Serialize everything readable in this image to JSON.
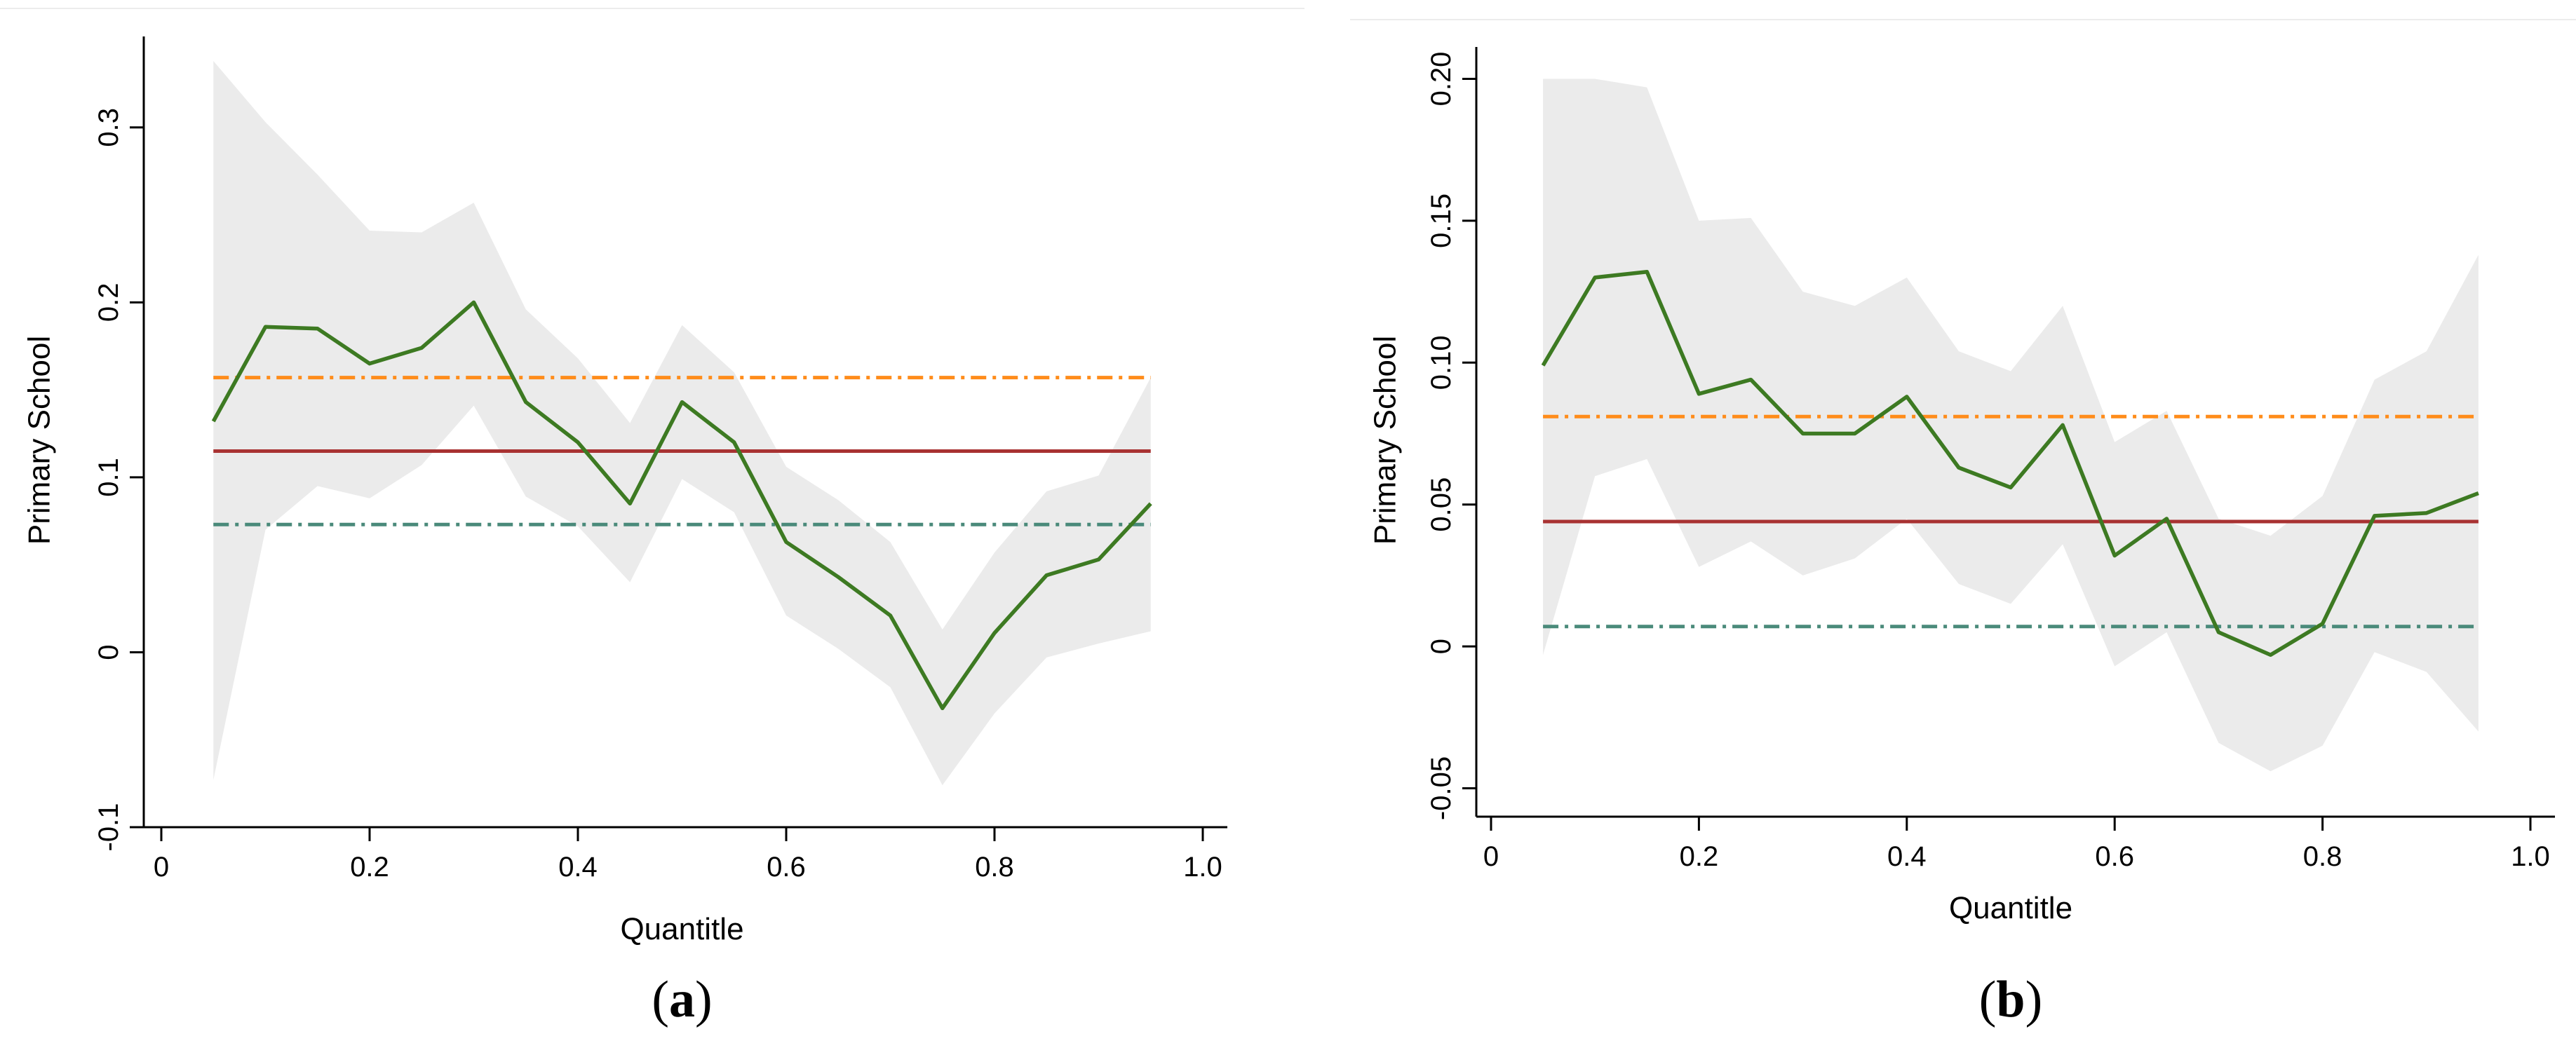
{
  "chart_data": [
    {
      "type": "line",
      "panel": "a",
      "panel_label": {
        "open": "(",
        "letter": "a",
        "close": ")"
      },
      "xlabel": "Quantitle",
      "ylabel": "Primary School",
      "xlim": [
        0,
        1.0
      ],
      "ylim": [
        -0.1,
        0.35
      ],
      "xticks": [
        0,
        0.2,
        0.4,
        0.6,
        0.8,
        1.0
      ],
      "xtick_labels": [
        "0",
        "0.2",
        "0.4",
        "0.6",
        "0.8",
        "1.0"
      ],
      "yticks": [
        -0.1,
        0,
        0.1,
        0.2,
        0.3
      ],
      "ytick_labels": [
        "-0.1",
        "0",
        "0.1",
        "0.2",
        "0.3"
      ],
      "x": [
        0.05,
        0.1,
        0.15,
        0.2,
        0.25,
        0.3,
        0.35,
        0.4,
        0.45,
        0.5,
        0.55,
        0.6,
        0.65,
        0.7,
        0.75,
        0.8,
        0.85,
        0.9,
        0.95
      ],
      "series": [
        {
          "name": "Quantile estimate",
          "style": "solid",
          "color": "#3d7a22",
          "values": [
            0.132,
            0.186,
            0.185,
            0.165,
            0.174,
            0.2,
            0.143,
            0.12,
            0.085,
            0.143,
            0.12,
            0.063,
            0.043,
            0.021,
            -0.032,
            0.011,
            0.044,
            0.053,
            0.085
          ]
        },
        {
          "name": "CI upper",
          "role": "band-upper",
          "values": [
            0.338,
            0.303,
            0.273,
            0.241,
            0.24,
            0.257,
            0.196,
            0.168,
            0.131,
            0.187,
            0.16,
            0.106,
            0.087,
            0.063,
            0.013,
            0.057,
            0.092,
            0.101,
            0.157
          ]
        },
        {
          "name": "CI lower",
          "role": "band-lower",
          "values": [
            -0.073,
            0.07,
            0.095,
            0.088,
            0.107,
            0.141,
            0.089,
            0.072,
            0.04,
            0.099,
            0.08,
            0.021,
            0.002,
            -0.02,
            -0.076,
            -0.035,
            -0.003,
            0.005,
            0.012
          ]
        },
        {
          "name": "OLS estimate",
          "style": "solid",
          "color": "#a83232",
          "constant": 0.115
        },
        {
          "name": "OLS CI upper",
          "style": "dashdot",
          "color": "#ff8c1a",
          "constant": 0.157
        },
        {
          "name": "OLS CI lower",
          "style": "dashdot",
          "color": "#4a8a7a",
          "constant": 0.073
        }
      ]
    },
    {
      "type": "line",
      "panel": "b",
      "panel_label": {
        "open": "(",
        "letter": "b",
        "close": ")"
      },
      "xlabel": "Quantitle",
      "ylabel": "Primary School",
      "xlim": [
        0,
        1.0
      ],
      "ylim": [
        -0.06,
        0.21
      ],
      "xticks": [
        0,
        0.2,
        0.4,
        0.6,
        0.8,
        1.0
      ],
      "xtick_labels": [
        "0",
        "0.2",
        "0.4",
        "0.6",
        "0.8",
        "1.0"
      ],
      "yticks": [
        -0.05,
        0,
        0.05,
        0.1,
        0.15,
        0.2
      ],
      "ytick_labels": [
        "-0.05",
        "0",
        "0.05",
        "0.10",
        "0.15",
        "0.20"
      ],
      "x": [
        0.05,
        0.1,
        0.15,
        0.2,
        0.25,
        0.3,
        0.35,
        0.4,
        0.45,
        0.5,
        0.55,
        0.6,
        0.65,
        0.7,
        0.75,
        0.8,
        0.85,
        0.9,
        0.95
      ],
      "series": [
        {
          "name": "Quantile estimate",
          "style": "solid",
          "color": "#3d7a22",
          "values": [
            0.099,
            0.13,
            0.132,
            0.089,
            0.094,
            0.075,
            0.075,
            0.088,
            0.063,
            0.056,
            0.078,
            0.032,
            0.045,
            0.005,
            -0.003,
            0.008,
            0.046,
            0.047,
            0.054
          ]
        },
        {
          "name": "CI upper",
          "role": "band-upper",
          "values": [
            0.2,
            0.2,
            0.197,
            0.15,
            0.151,
            0.125,
            0.12,
            0.13,
            0.104,
            0.097,
            0.12,
            0.072,
            0.083,
            0.045,
            0.039,
            0.053,
            0.094,
            0.104,
            0.138
          ]
        },
        {
          "name": "CI lower",
          "role": "band-lower",
          "values": [
            -0.003,
            0.06,
            0.066,
            0.028,
            0.037,
            0.025,
            0.031,
            0.045,
            0.022,
            0.015,
            0.036,
            -0.007,
            0.005,
            -0.034,
            -0.044,
            -0.035,
            -0.002,
            -0.009,
            -0.03
          ]
        },
        {
          "name": "OLS estimate",
          "style": "solid",
          "color": "#a83232",
          "constant": 0.044
        },
        {
          "name": "OLS CI upper",
          "style": "dashdot",
          "color": "#ff8c1a",
          "constant": 0.081
        },
        {
          "name": "OLS CI lower",
          "style": "dashdot",
          "color": "#4a8a7a",
          "constant": 0.007
        }
      ]
    }
  ]
}
